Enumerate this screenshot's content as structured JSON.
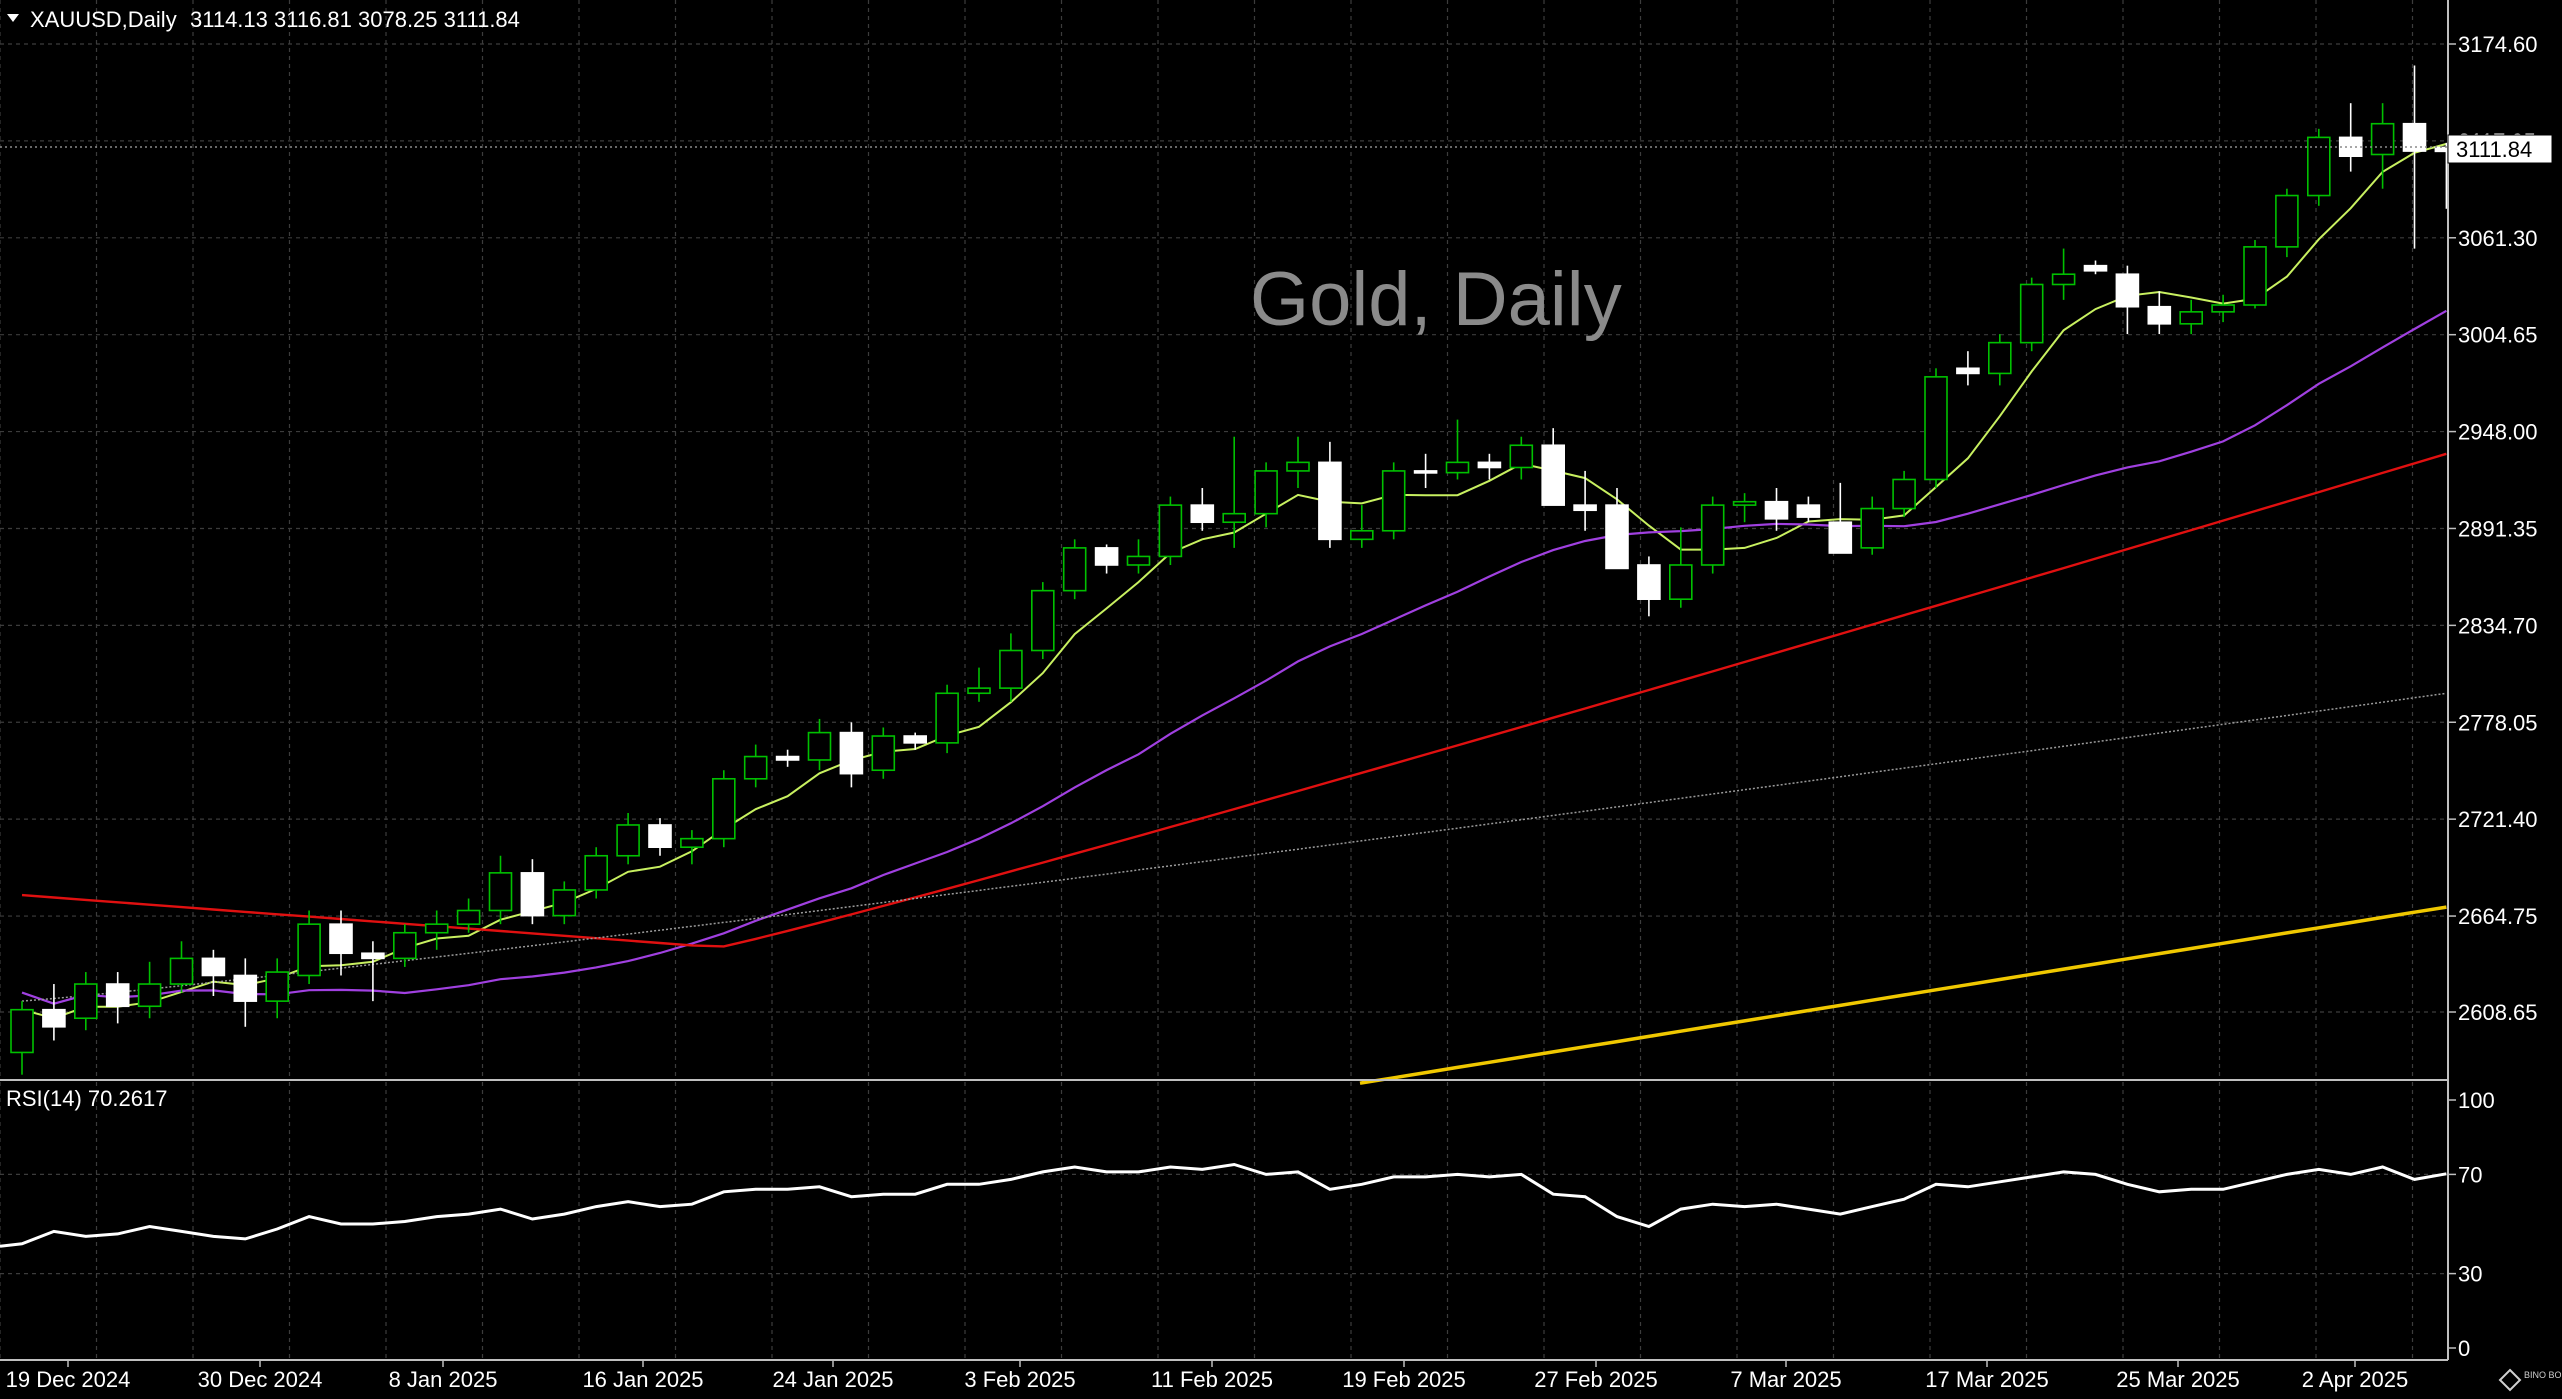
{
  "header": {
    "symbol": "XAUUSD,Daily",
    "ohlc": "3114.13 3116.81 3078.25 3111.84"
  },
  "watermark": "Gold, Daily",
  "current_price": "3111.84",
  "price_axis_labels": [
    "3174.60",
    "3117.95",
    "3061.30",
    "3004.65",
    "2948.00",
    "2891.35",
    "2834.70",
    "2778.05",
    "2721.40",
    "2664.75",
    "2608.65"
  ],
  "time_axis_labels": [
    "19 Dec 2024",
    "30 Dec 2024",
    "8 Jan 2025",
    "16 Jan 2025",
    "24 Jan 2025",
    "3 Feb 2025",
    "11 Feb 2025",
    "19 Feb 2025",
    "27 Feb 2025",
    "7 Mar 2025",
    "17 Mar 2025",
    "25 Mar 2025",
    "2 Apr 2025"
  ],
  "rsi": {
    "label": "RSI(14) 70.2617",
    "axis_labels": [
      "100",
      "70",
      "30",
      "0"
    ]
  },
  "logo_text": "BINO BOUND",
  "colors": {
    "background": "#000000",
    "grid": "#3c3c3c",
    "bull_body": "#000000",
    "bull_edge": "#00c000",
    "bear_body": "#ffffff",
    "ma_fast": "#c8f060",
    "ma_mid": "#a040e0",
    "ma_slow": "#e01010",
    "ma_dotted": "#9a9a9a",
    "ma_long": "#f0c800",
    "rsi_line": "#ffffff"
  },
  "chart_data": {
    "type": "candlestick",
    "symbol": "XAUUSD",
    "timeframe": "Daily",
    "ylim": [
      2565,
      3190
    ],
    "rsi_ylim": [
      0,
      100
    ],
    "candles": [
      [
        2585,
        2615,
        2572,
        2610
      ],
      [
        2610,
        2625,
        2592,
        2600
      ],
      [
        2605,
        2632,
        2598,
        2625
      ],
      [
        2625,
        2632,
        2602,
        2612
      ],
      [
        2612,
        2638,
        2605,
        2625
      ],
      [
        2625,
        2650,
        2620,
        2640
      ],
      [
        2640,
        2645,
        2618,
        2630
      ],
      [
        2630,
        2640,
        2600,
        2615
      ],
      [
        2615,
        2640,
        2605,
        2632
      ],
      [
        2630,
        2668,
        2625,
        2660
      ],
      [
        2660,
        2668,
        2630,
        2643
      ],
      [
        2643,
        2650,
        2615,
        2640
      ],
      [
        2640,
        2660,
        2635,
        2655
      ],
      [
        2655,
        2668,
        2645,
        2660
      ],
      [
        2660,
        2675,
        2655,
        2668
      ],
      [
        2668,
        2700,
        2660,
        2690
      ],
      [
        2690,
        2698,
        2660,
        2665
      ],
      [
        2665,
        2685,
        2660,
        2680
      ],
      [
        2680,
        2705,
        2675,
        2700
      ],
      [
        2700,
        2725,
        2695,
        2718
      ],
      [
        2718,
        2722,
        2700,
        2705
      ],
      [
        2705,
        2715,
        2695,
        2710
      ],
      [
        2710,
        2750,
        2705,
        2745
      ],
      [
        2745,
        2765,
        2740,
        2758
      ],
      [
        2758,
        2762,
        2752,
        2756
      ],
      [
        2756,
        2780,
        2750,
        2772
      ],
      [
        2772,
        2778,
        2740,
        2748
      ],
      [
        2750,
        2775,
        2745,
        2770
      ],
      [
        2770,
        2772,
        2762,
        2766
      ],
      [
        2766,
        2800,
        2760,
        2795
      ],
      [
        2795,
        2810,
        2790,
        2798
      ],
      [
        2798,
        2830,
        2790,
        2820
      ],
      [
        2820,
        2860,
        2815,
        2855
      ],
      [
        2855,
        2885,
        2850,
        2880
      ],
      [
        2880,
        2882,
        2865,
        2870
      ],
      [
        2870,
        2885,
        2865,
        2875
      ],
      [
        2875,
        2910,
        2870,
        2905
      ],
      [
        2905,
        2915,
        2890,
        2895
      ],
      [
        2895,
        2945,
        2880,
        2900
      ],
      [
        2900,
        2930,
        2892,
        2925
      ],
      [
        2925,
        2945,
        2915,
        2930
      ],
      [
        2930,
        2942,
        2880,
        2885
      ],
      [
        2885,
        2905,
        2880,
        2890
      ],
      [
        2890,
        2930,
        2885,
        2925
      ],
      [
        2925,
        2935,
        2915,
        2924
      ],
      [
        2924,
        2955,
        2920,
        2930
      ],
      [
        2930,
        2935,
        2920,
        2927
      ],
      [
        2927,
        2945,
        2920,
        2940
      ],
      [
        2940,
        2950,
        2910,
        2905
      ],
      [
        2905,
        2925,
        2890,
        2902
      ],
      [
        2905,
        2915,
        2870,
        2868
      ],
      [
        2870,
        2875,
        2840,
        2850
      ],
      [
        2850,
        2892,
        2845,
        2870
      ],
      [
        2870,
        2910,
        2865,
        2905
      ],
      [
        2905,
        2912,
        2895,
        2907
      ],
      [
        2907,
        2915,
        2890,
        2897
      ],
      [
        2905,
        2910,
        2895,
        2898
      ],
      [
        2895,
        2918,
        2880,
        2877
      ],
      [
        2880,
        2910,
        2876,
        2903
      ],
      [
        2903,
        2925,
        2898,
        2920
      ],
      [
        2920,
        2985,
        2915,
        2980
      ],
      [
        2985,
        2995,
        2975,
        2982
      ],
      [
        2982,
        3005,
        2975,
        3000
      ],
      [
        3000,
        3038,
        2995,
        3034
      ],
      [
        3034,
        3055,
        3025,
        3040
      ],
      [
        3045,
        3048,
        3040,
        3042
      ],
      [
        3040,
        3045,
        3005,
        3021
      ],
      [
        3021,
        3030,
        3005,
        3011
      ],
      [
        3011,
        3025,
        3005,
        3018
      ],
      [
        3018,
        3028,
        3012,
        3022
      ],
      [
        3022,
        3060,
        3020,
        3056
      ],
      [
        3056,
        3090,
        3050,
        3086
      ],
      [
        3086,
        3125,
        3080,
        3120
      ],
      [
        3120,
        3140,
        3100,
        3109
      ],
      [
        3110,
        3140,
        3090,
        3128
      ],
      [
        3128,
        3162,
        3055,
        3112
      ],
      [
        3114.13,
        3116.81,
        3078.25,
        3111.84
      ]
    ],
    "rsi_values": [
      42,
      47,
      45,
      46,
      49,
      47,
      45,
      44,
      48,
      53,
      50,
      50,
      51,
      53,
      54,
      56,
      52,
      54,
      57,
      59,
      57,
      58,
      63,
      64,
      64,
      65,
      61,
      62,
      62,
      66,
      66,
      68,
      71,
      73,
      71,
      71,
      73,
      72,
      74,
      70,
      71,
      64,
      66,
      69,
      69,
      70,
      69,
      70,
      62,
      61,
      53,
      49,
      56,
      58,
      57,
      58,
      56,
      54,
      57,
      60,
      66,
      65,
      67,
      69,
      71,
      70,
      66,
      63,
      64,
      64,
      67,
      70,
      72,
      70,
      73,
      68,
      70.26
    ]
  }
}
